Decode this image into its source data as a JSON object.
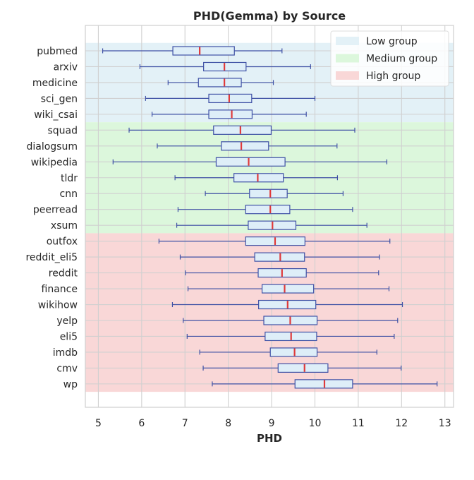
{
  "chart_data": {
    "type": "boxplot",
    "orientation": "horizontal",
    "title": "PHD(Gemma) by Source",
    "xlabel": "PHD",
    "ylabel": "",
    "xlim": [
      4.7,
      13.2
    ],
    "xticks": [
      5,
      6,
      7,
      8,
      9,
      10,
      11,
      12,
      13
    ],
    "grid": true,
    "legend_position": "top-right",
    "colors": {
      "box_fill": "#deeef8",
      "box_edge": "#3f51a5",
      "median": "#e03a3a",
      "grid": "#d0d0d0"
    },
    "groups": [
      {
        "name": "Low group",
        "color": "#e3f1f7",
        "members": [
          "pubmed",
          "arxiv",
          "medicine",
          "sci_gen",
          "wiki_csai"
        ]
      },
      {
        "name": "Medium group",
        "color": "#dcf7dc",
        "members": [
          "squad",
          "dialogsum",
          "wikipedia",
          "tldr",
          "cnn",
          "peerread",
          "xsum"
        ]
      },
      {
        "name": "High group",
        "color": "#f9d7d7",
        "members": [
          "outfox",
          "reddit_eli5",
          "reddit",
          "finance",
          "wikihow",
          "yelp",
          "eli5",
          "imdb",
          "cmv",
          "wp"
        ]
      }
    ],
    "categories": [
      "pubmed",
      "arxiv",
      "medicine",
      "sci_gen",
      "wiki_csai",
      "squad",
      "dialogsum",
      "wikipedia",
      "tldr",
      "cnn",
      "peerread",
      "xsum",
      "outfox",
      "reddit_eli5",
      "reddit",
      "finance",
      "wikihow",
      "yelp",
      "eli5",
      "imdb",
      "cmv",
      "wp"
    ],
    "boxes": [
      {
        "whislo": 5.1,
        "q1": 6.72,
        "med": 7.34,
        "q3": 8.14,
        "whishi": 9.24
      },
      {
        "whislo": 5.96,
        "q1": 7.43,
        "med": 7.91,
        "q3": 8.41,
        "whishi": 9.9
      },
      {
        "whislo": 6.61,
        "q1": 7.31,
        "med": 7.91,
        "q3": 8.3,
        "whishi": 9.04
      },
      {
        "whislo": 6.09,
        "q1": 7.55,
        "med": 8.02,
        "q3": 8.54,
        "whishi": 10.0
      },
      {
        "whislo": 6.24,
        "q1": 7.55,
        "med": 8.08,
        "q3": 8.55,
        "whishi": 9.8
      },
      {
        "whislo": 5.71,
        "q1": 7.66,
        "med": 8.28,
        "q3": 8.99,
        "whishi": 10.92
      },
      {
        "whislo": 6.36,
        "q1": 7.84,
        "med": 8.3,
        "q3": 8.93,
        "whishi": 10.51
      },
      {
        "whislo": 5.34,
        "q1": 7.72,
        "med": 8.47,
        "q3": 9.31,
        "whishi": 11.66
      },
      {
        "whislo": 6.77,
        "q1": 8.13,
        "med": 8.68,
        "q3": 9.27,
        "whishi": 10.52
      },
      {
        "whislo": 7.47,
        "q1": 8.49,
        "med": 8.97,
        "q3": 9.36,
        "whishi": 10.65
      },
      {
        "whislo": 6.84,
        "q1": 8.4,
        "med": 8.97,
        "q3": 9.42,
        "whishi": 10.87
      },
      {
        "whislo": 6.81,
        "q1": 8.46,
        "med": 9.02,
        "q3": 9.56,
        "whishi": 11.2
      },
      {
        "whislo": 6.4,
        "q1": 8.4,
        "med": 9.08,
        "q3": 9.77,
        "whishi": 11.73
      },
      {
        "whislo": 6.89,
        "q1": 8.61,
        "med": 9.2,
        "q3": 9.76,
        "whishi": 11.49
      },
      {
        "whislo": 7.01,
        "q1": 8.69,
        "med": 9.24,
        "q3": 9.8,
        "whishi": 11.47
      },
      {
        "whislo": 7.07,
        "q1": 8.78,
        "med": 9.3,
        "q3": 9.97,
        "whishi": 11.71
      },
      {
        "whislo": 6.71,
        "q1": 8.7,
        "med": 9.37,
        "q3": 10.02,
        "whishi": 12.02
      },
      {
        "whislo": 6.96,
        "q1": 8.82,
        "med": 9.43,
        "q3": 10.05,
        "whishi": 11.91
      },
      {
        "whislo": 7.05,
        "q1": 8.85,
        "med": 9.45,
        "q3": 10.04,
        "whishi": 11.83
      },
      {
        "whislo": 7.34,
        "q1": 8.97,
        "med": 9.53,
        "q3": 10.05,
        "whishi": 11.43
      },
      {
        "whislo": 7.42,
        "q1": 9.15,
        "med": 9.76,
        "q3": 10.3,
        "whishi": 11.99
      },
      {
        "whislo": 7.63,
        "q1": 9.54,
        "med": 10.22,
        "q3": 10.87,
        "whishi": 12.82
      }
    ]
  }
}
